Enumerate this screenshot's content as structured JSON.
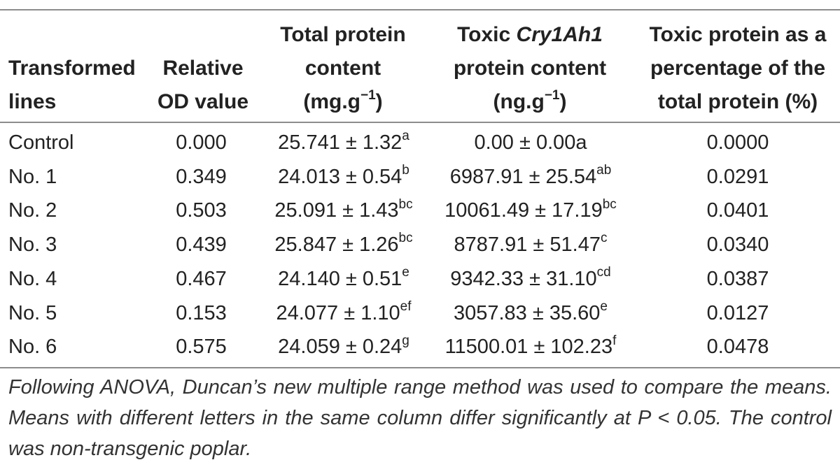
{
  "table": {
    "headers": {
      "col0": [
        "Transformed",
        "lines"
      ],
      "col1": [
        "Relative",
        "OD value"
      ],
      "col2": {
        "line1": "Total protein",
        "line2": "content",
        "line3_base": "(mg.g",
        "line3_sup": "−1",
        "line3_end": ")"
      },
      "col3": {
        "line1_pre": "Toxic ",
        "line1_italic": "Cry1Ah1",
        "line2": "protein content",
        "line3_base": "(ng.g",
        "line3_sup": "−1",
        "line3_end": ")"
      },
      "col4": [
        "Toxic protein as a",
        "percentage of the",
        "total protein (%)"
      ]
    },
    "rows": [
      {
        "line": "Control",
        "od": "0.000",
        "total": "25.741 ± 1.32",
        "total_sup": "a",
        "toxic": "0.00 ± 0.00a",
        "toxic_sup": "",
        "percent": "0.0000"
      },
      {
        "line": "No. 1",
        "od": "0.349",
        "total": "24.013 ± 0.54",
        "total_sup": "b",
        "toxic": "6987.91 ± 25.54",
        "toxic_sup": "ab",
        "percent": "0.0291"
      },
      {
        "line": "No. 2",
        "od": "0.503",
        "total": "25.091 ± 1.43",
        "total_sup": "bc",
        "toxic": "10061.49 ± 17.19",
        "toxic_sup": "bc",
        "percent": "0.0401"
      },
      {
        "line": "No. 3",
        "od": "0.439",
        "total": "25.847 ± 1.26",
        "total_sup": "bc",
        "toxic": "8787.91 ± 51.47",
        "toxic_sup": "c",
        "percent": "0.0340"
      },
      {
        "line": "No. 4",
        "od": "0.467",
        "total": "24.140 ± 0.51",
        "total_sup": "e",
        "toxic": "9342.33 ± 31.10",
        "toxic_sup": "cd",
        "percent": "0.0387"
      },
      {
        "line": "No. 5",
        "od": "0.153",
        "total": "24.077 ± 1.10",
        "total_sup": "ef",
        "toxic": "3057.83 ± 35.60",
        "toxic_sup": "e",
        "percent": "0.0127"
      },
      {
        "line": "No. 6",
        "od": "0.575",
        "total": "24.059 ± 0.24",
        "total_sup": "g",
        "toxic": "11500.01 ± 102.23",
        "toxic_sup": "f",
        "percent": "0.0478"
      }
    ]
  },
  "footnote": "Following ANOVA, Duncan’s new multiple range method was used to compare the means. Means with different letters in the same column differ significantly at P < 0.05. The control was non-transgenic poplar."
}
